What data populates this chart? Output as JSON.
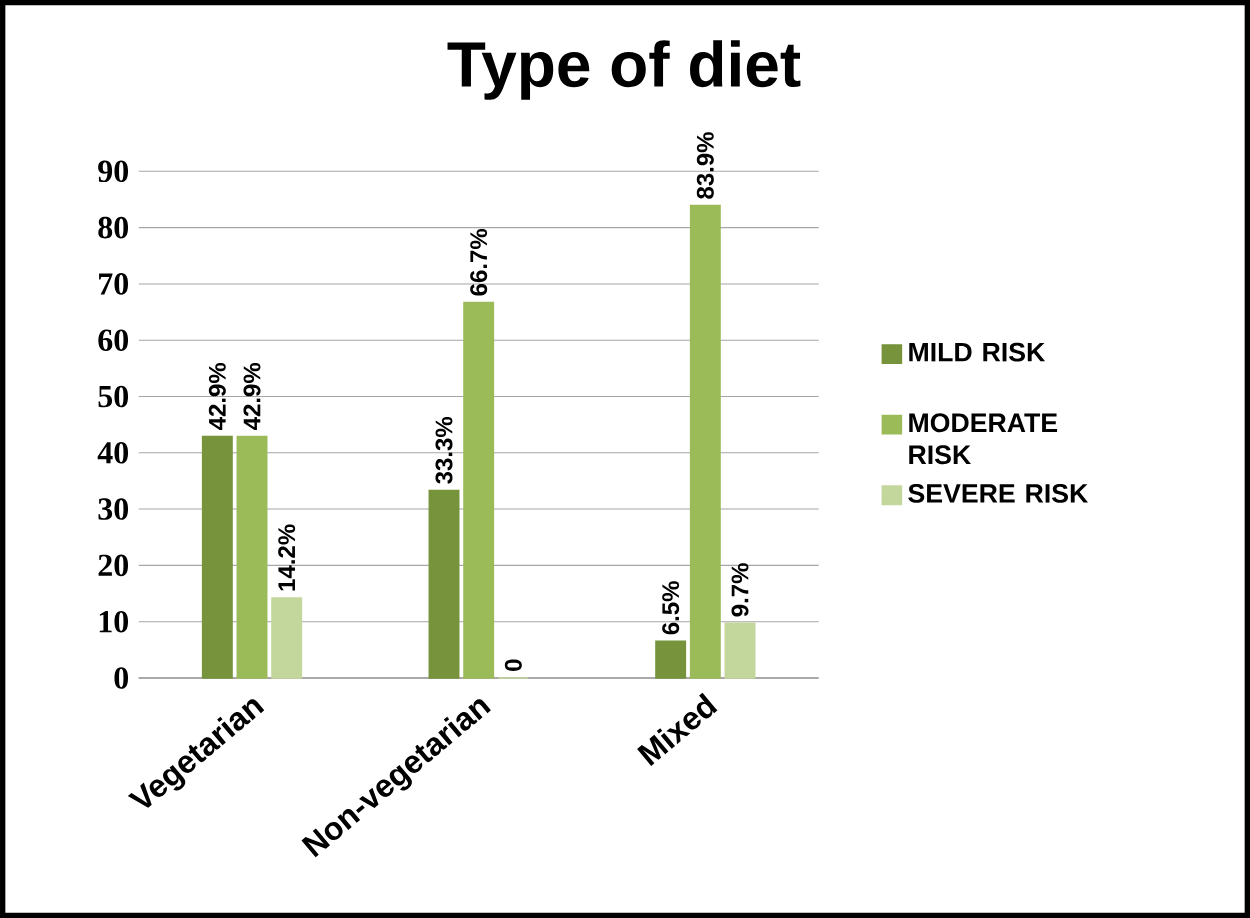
{
  "chart_data": {
    "type": "bar",
    "title": "Type of diet",
    "categories": [
      "Vegetarian",
      "Non-vegetarian",
      "Mixed"
    ],
    "series": [
      {
        "name": "MILD RISK",
        "color": "#77933c",
        "values": [
          42.9,
          33.3,
          6.5
        ],
        "value_labels": [
          "42.9%",
          "33.3%",
          "6.5%"
        ]
      },
      {
        "name": "MODERATE RISK",
        "color": "#9bbb59",
        "values": [
          42.9,
          66.7,
          83.9
        ],
        "value_labels": [
          "42.9%",
          "66.7%",
          "83.9%"
        ]
      },
      {
        "name": "SEVERE RISK",
        "color": "#c3d69b",
        "values": [
          14.2,
          0,
          9.7
        ],
        "value_labels": [
          "14.2%",
          "0",
          "9.7%"
        ]
      }
    ],
    "ylim": [
      0,
      90
    ],
    "yticks": [
      0,
      10,
      20,
      30,
      40,
      50,
      60,
      70,
      80,
      90
    ],
    "grid": "y",
    "legend": "right"
  }
}
